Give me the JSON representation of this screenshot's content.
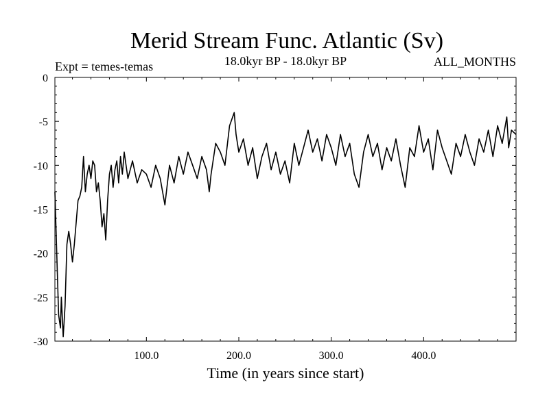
{
  "chart_data": {
    "type": "line",
    "title": "Merid Stream Func. Atlantic (Sv)",
    "subtitle": "18.0kyr BP - 18.0kyr BP",
    "experiment_label": "Expt = temes-temas",
    "months_label": "ALL_MONTHS",
    "xlabel": "Time (in years since start)",
    "ylabel": "",
    "xlim": [
      1,
      500
    ],
    "ylim": [
      -30,
      0
    ],
    "x_ticks": [
      100,
      200,
      300,
      400
    ],
    "x_tick_labels": [
      "100.0",
      "200.0",
      "300.0",
      "400.0"
    ],
    "y_ticks": [
      0,
      -5,
      -10,
      -15,
      -20,
      -25,
      -30
    ],
    "y_tick_labels": [
      "0",
      "-5",
      "-10",
      "-15",
      "-20",
      "-25",
      "-30"
    ],
    "grid": false,
    "series": [
      {
        "name": "temes-temas",
        "color": "#000000",
        "x": [
          1,
          3,
          5,
          7,
          8,
          10,
          12,
          14,
          16,
          18,
          20,
          22,
          24,
          26,
          28,
          30,
          32,
          34,
          36,
          38,
          40,
          42,
          44,
          46,
          48,
          50,
          52,
          54,
          56,
          58,
          60,
          62,
          64,
          66,
          68,
          70,
          72,
          74,
          76,
          78,
          80,
          85,
          90,
          95,
          100,
          105,
          110,
          115,
          120,
          125,
          130,
          135,
          140,
          145,
          150,
          155,
          160,
          165,
          168,
          170,
          175,
          180,
          185,
          190,
          195,
          197,
          200,
          205,
          210,
          215,
          220,
          225,
          230,
          235,
          240,
          245,
          250,
          255,
          260,
          265,
          270,
          275,
          280,
          285,
          290,
          295,
          300,
          305,
          310,
          315,
          320,
          325,
          330,
          335,
          340,
          345,
          350,
          355,
          360,
          365,
          370,
          375,
          380,
          385,
          390,
          395,
          400,
          405,
          410,
          415,
          420,
          425,
          430,
          435,
          440,
          445,
          450,
          455,
          460,
          465,
          470,
          475,
          480,
          485,
          490,
          492,
          495,
          500
        ],
        "values": [
          -13,
          -20,
          -27,
          -28.5,
          -25,
          -29.5,
          -26,
          -19,
          -17.5,
          -19,
          -21,
          -19,
          -16.5,
          -14,
          -13.5,
          -12.5,
          -9,
          -13,
          -11,
          -10,
          -11.5,
          -9.5,
          -10,
          -13,
          -12,
          -14,
          -17,
          -15.5,
          -18.5,
          -14,
          -11,
          -10,
          -12.5,
          -10.5,
          -9.5,
          -12,
          -9,
          -11,
          -8.5,
          -10,
          -11.5,
          -9.5,
          -12,
          -10.5,
          -11,
          -12.5,
          -10,
          -11.5,
          -14.5,
          -10,
          -12,
          -9,
          -11,
          -8.5,
          -10,
          -11.5,
          -9,
          -10.5,
          -13,
          -11,
          -7.5,
          -8.5,
          -10,
          -5.5,
          -4,
          -6.5,
          -8.5,
          -7,
          -10,
          -8,
          -11.5,
          -9,
          -7.5,
          -10.5,
          -8.5,
          -11,
          -9.5,
          -12,
          -7.5,
          -10,
          -8,
          -6,
          -8.5,
          -7,
          -9.5,
          -6.5,
          -8,
          -10,
          -6.5,
          -9,
          -7.5,
          -11,
          -12.5,
          -8.5,
          -6.5,
          -9,
          -7.5,
          -10.5,
          -8,
          -9.5,
          -7,
          -10,
          -12.5,
          -8,
          -9,
          -5.5,
          -8.5,
          -7,
          -10.5,
          -6,
          -8,
          -9.5,
          -11,
          -7.5,
          -9,
          -6.5,
          -8.5,
          -10,
          -7,
          -8.5,
          -6,
          -9,
          -5.5,
          -7.5,
          -4.5,
          -8,
          -6,
          -6.5
        ]
      }
    ]
  }
}
